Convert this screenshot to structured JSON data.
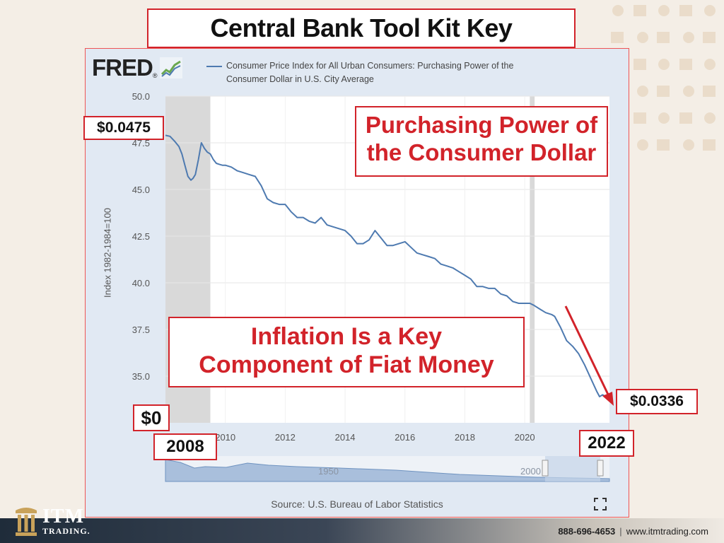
{
  "slide": {
    "title": "Central Bank Tool Kit Key",
    "callout_top": "Purchasing Power of the Consumer Dollar",
    "callout_mid_line1": "Inflation Is a Key",
    "callout_mid_line2": "Component of Fiat Money",
    "label_start_value": "$0.0475",
    "label_end_value": "$0.0336",
    "label_zero": "$0",
    "label_start_year": "2008",
    "label_end_year": "2022"
  },
  "fred": {
    "logo": "FRED",
    "legend": "Consumer Price Index for All Urban Consumers: Purchasing Power of the Consumer Dollar in U.S. City Average",
    "source": "Source: U.S. Bureau of Labor Statistics"
  },
  "footer": {
    "brand": "ITM",
    "brand_sub": "TRADING.",
    "phone": "888-696-4653",
    "website": "www.itmtrading.com"
  },
  "colors": {
    "series": "#4e7ab0",
    "accent": "#d2232a",
    "recession": "#d9d9d9"
  },
  "chart_data": {
    "type": "line",
    "ylabel": "Index 1982-1984=100",
    "ylim": [
      32.5,
      50.0
    ],
    "xlim": [
      2008.0,
      2022.83
    ],
    "y_ticks": [
      "50.0",
      "47.5",
      "45.0",
      "42.5",
      "40.0",
      "37.5",
      "35.0"
    ],
    "x_ticks": [
      "2010",
      "2012",
      "2014",
      "2016",
      "2018",
      "2020"
    ],
    "recessions": [
      [
        2008.0,
        2009.5
      ],
      [
        2020.17,
        2020.33
      ]
    ],
    "series": [
      {
        "x": [
          2008.0,
          2008.15,
          2008.3,
          2008.45,
          2008.55,
          2008.65,
          2008.75,
          2008.85,
          2008.92,
          2009.0,
          2009.1,
          2009.2,
          2009.3,
          2009.4,
          2009.5,
          2009.6,
          2009.7,
          2009.8,
          2009.9,
          2010.0,
          2010.2,
          2010.4,
          2010.6,
          2010.8,
          2011.0,
          2011.2,
          2011.4,
          2011.6,
          2011.8,
          2012.0,
          2012.2,
          2012.4,
          2012.6,
          2012.8,
          2013.0,
          2013.2,
          2013.4,
          2013.6,
          2013.8,
          2014.0,
          2014.2,
          2014.4,
          2014.6,
          2014.8,
          2015.0,
          2015.2,
          2015.4,
          2015.6,
          2015.8,
          2016.0,
          2016.2,
          2016.4,
          2016.6,
          2016.8,
          2017.0,
          2017.2,
          2017.4,
          2017.6,
          2017.8,
          2018.0,
          2018.2,
          2018.4,
          2018.6,
          2018.8,
          2019.0,
          2019.2,
          2019.4,
          2019.6,
          2019.8,
          2020.0,
          2020.17,
          2020.3,
          2020.5,
          2020.7,
          2020.9,
          2021.0,
          2021.2,
          2021.4,
          2021.6,
          2021.8,
          2022.0,
          2022.2,
          2022.4,
          2022.5,
          2022.6,
          2022.7,
          2022.83
        ],
        "y": [
          47.9,
          47.85,
          47.6,
          47.3,
          46.9,
          46.3,
          45.7,
          45.5,
          45.6,
          45.8,
          46.6,
          47.5,
          47.2,
          47.0,
          46.9,
          46.6,
          46.4,
          46.35,
          46.3,
          46.3,
          46.2,
          46.0,
          45.9,
          45.8,
          45.7,
          45.2,
          44.5,
          44.3,
          44.2,
          44.2,
          43.8,
          43.5,
          43.5,
          43.3,
          43.2,
          43.5,
          43.1,
          43.0,
          42.9,
          42.8,
          42.5,
          42.1,
          42.1,
          42.3,
          42.8,
          42.4,
          42.0,
          42.0,
          42.1,
          42.2,
          41.9,
          41.6,
          41.5,
          41.4,
          41.3,
          41.0,
          40.9,
          40.8,
          40.6,
          40.4,
          40.2,
          39.8,
          39.8,
          39.7,
          39.7,
          39.4,
          39.3,
          39.0,
          38.9,
          38.9,
          38.9,
          38.8,
          38.6,
          38.4,
          38.3,
          38.2,
          37.6,
          36.9,
          36.6,
          36.2,
          35.6,
          34.9,
          34.2,
          33.9,
          34.0,
          33.9,
          33.8
        ]
      }
    ]
  }
}
